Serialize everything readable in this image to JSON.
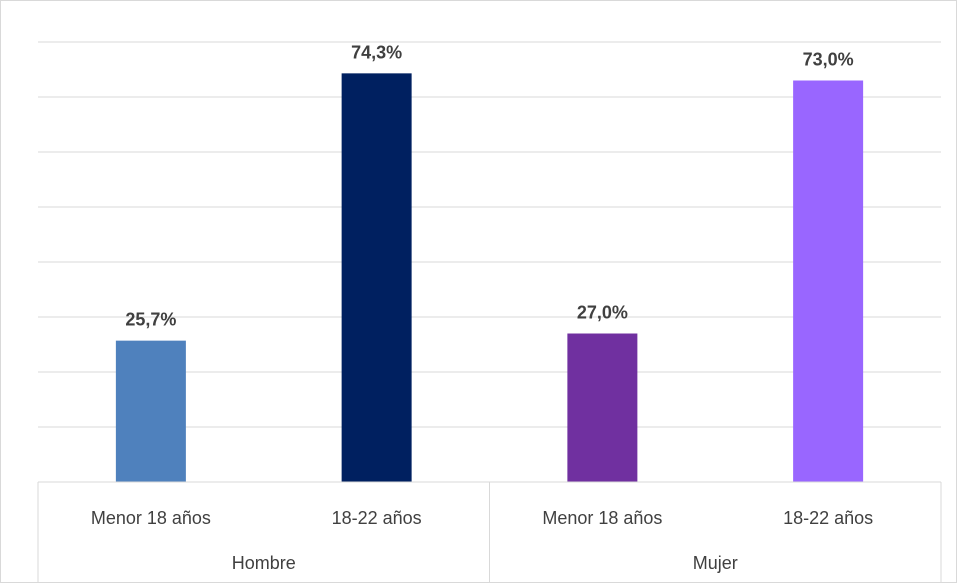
{
  "chart_data": {
    "type": "bar",
    "groups": [
      {
        "name": "Hombre",
        "bars": [
          {
            "category": "Menor 18 años",
            "value": 25.7,
            "label": "25,7%",
            "color": "#4f81bd"
          },
          {
            "category": "18-22 años",
            "value": 74.3,
            "label": "74,3%",
            "color": "#002060"
          }
        ]
      },
      {
        "name": "Mujer",
        "bars": [
          {
            "category": "Menor 18 años",
            "value": 27.0,
            "label": "27,0%",
            "color": "#7030a0"
          },
          {
            "category": "18-22 años",
            "value": 73.0,
            "label": "73,0%",
            "color": "#9966ff"
          }
        ]
      }
    ],
    "ylim": [
      0,
      80
    ],
    "grid": true,
    "legend": "none"
  }
}
